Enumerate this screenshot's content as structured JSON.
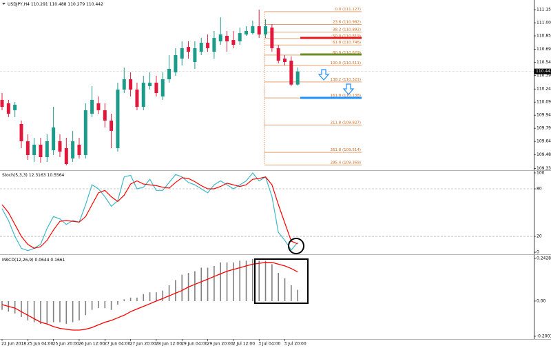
{
  "chart_data": [
    {
      "type": "candlestick",
      "title": "USDJPY,H4",
      "categories": [
        "22 Jun 2018",
        null,
        null,
        null,
        "25 Jun 04:00",
        null,
        null,
        null,
        "25 Jun 20:00",
        null,
        null,
        null,
        "26 Jun 12:00",
        null,
        null,
        null,
        "27 Jun 04:00",
        null,
        null,
        null,
        "27 Jun 20:00",
        null,
        null,
        null,
        "28 Jun 12:00",
        null,
        null,
        null,
        "29 Jun 04:00",
        null,
        null,
        null,
        "29 Jun 20:00",
        null,
        null,
        null,
        "2 Jul 12:00",
        null,
        null,
        null,
        "3 Jul 04:00",
        null,
        null,
        null,
        "3 Jul 20:00",
        null,
        null
      ],
      "open": [
        110.115,
        110.076,
        109.997,
        109.839,
        109.641,
        109.483,
        109.602,
        109.459,
        109.538,
        109.641,
        109.562,
        109.444,
        109.602,
        109.483,
        109.957,
        110.076,
        109.997,
        109.878,
        109.562,
        110.234,
        110.352,
        110.234,
        110.036,
        110.273,
        110.313,
        110.155,
        110.352,
        110.431,
        110.589,
        110.723,
        110.55,
        110.668,
        110.771,
        110.668,
        110.787,
        110.85,
        110.802,
        110.787,
        110.866,
        110.881,
        110.96,
        110.866,
        110.945,
        110.708,
        110.589,
        110.565,
        110.291
      ],
      "high": [
        110.194,
        110.115,
        110.091,
        109.878,
        109.72,
        109.681,
        109.681,
        109.72,
        110.036,
        109.72,
        109.681,
        109.76,
        109.681,
        110.076,
        110.273,
        110.155,
        110.076,
        109.957,
        110.313,
        110.486,
        110.431,
        110.313,
        110.392,
        110.431,
        110.392,
        110.431,
        110.629,
        110.708,
        110.787,
        110.787,
        110.787,
        110.826,
        110.866,
        110.905,
        111.063,
        110.905,
        110.905,
        110.945,
        110.96,
        111.024,
        111.15,
        111.039,
        110.984,
        110.747,
        110.629,
        110.613,
        110.488
      ],
      "low": [
        109.997,
        109.918,
        109.918,
        109.562,
        109.428,
        109.404,
        109.396,
        109.404,
        109.483,
        109.459,
        109.365,
        109.404,
        109.444,
        109.444,
        109.918,
        109.957,
        109.799,
        109.562,
        109.523,
        110.194,
        110.155,
        109.997,
        109.997,
        110.234,
        110.155,
        110.115,
        110.313,
        110.392,
        110.51,
        110.589,
        110.471,
        110.629,
        110.668,
        110.589,
        110.747,
        110.668,
        110.708,
        110.747,
        110.85,
        110.866,
        110.826,
        110.826,
        110.668,
        110.534,
        110.51,
        110.273,
        110.279
      ],
      "close": [
        110.036,
        109.957,
        110.06,
        109.641,
        109.483,
        109.602,
        109.459,
        109.641,
        109.799,
        109.523,
        109.38,
        109.641,
        109.483,
        109.997,
        110.115,
        109.997,
        109.878,
        109.76,
        110.234,
        110.352,
        110.234,
        110.036,
        110.313,
        110.313,
        110.194,
        110.352,
        110.471,
        110.629,
        110.708,
        110.668,
        110.708,
        110.771,
        110.708,
        110.826,
        110.866,
        110.787,
        110.747,
        110.881,
        110.905,
        110.96,
        110.866,
        110.96,
        110.708,
        110.565,
        110.55,
        110.291,
        110.442
      ],
      "up_color": "#1b9b8a",
      "down_color": "#e0193c",
      "ylim": [
        109.309,
        111.261
      ],
      "yticks": [
        {
          "value": 111.15,
          "label": "111.150"
        },
        {
          "value": 111.0,
          "label": "111.000"
        },
        {
          "value": 110.85,
          "label": "110.850"
        },
        {
          "value": 110.695,
          "label": "110.695"
        },
        {
          "value": 110.545,
          "label": "110.545"
        },
        {
          "value": 110.395,
          "label": "110.395"
        },
        {
          "value": 110.24,
          "label": "110.240"
        },
        {
          "value": 110.09,
          "label": "110.090"
        },
        {
          "value": 109.94,
          "label": "109.940"
        },
        {
          "value": 109.79,
          "label": "109.790"
        },
        {
          "value": 109.64,
          "label": "109.640"
        },
        {
          "value": 109.485,
          "label": "109.485"
        },
        {
          "value": 109.33,
          "label": "109.330"
        }
      ],
      "fib_color": "#d2691e",
      "fib_levels": [
        {
          "value": 111.127,
          "label": "0.0 (111.127)"
        },
        {
          "value": 110.982,
          "label": "23.6 (110.982)"
        },
        {
          "value": 110.892,
          "label": "38.2 (110.892)"
        },
        {
          "value": 110.819,
          "label": "50.0 (110.819)"
        },
        {
          "value": 110.746,
          "label": "61.8 (110.746)"
        },
        {
          "value": 110.629,
          "label": "80.9 (110.629)"
        },
        {
          "value": 110.511,
          "label": "100.0 (110.511)"
        },
        {
          "value": 110.321,
          "label": "138.2 (110.321)"
        },
        {
          "value": 110.138,
          "label": "161.8 (110.138)"
        },
        {
          "value": 109.827,
          "label": "211.8 (109.827)"
        },
        {
          "value": 109.514,
          "label": "261.8 (109.514)"
        },
        {
          "value": 109.369,
          "label": "285.4 (109.369)"
        }
      ],
      "lines": [
        {
          "value": 110.826,
          "color": "#e0191c"
        },
        {
          "value": 110.637,
          "color": "#6b8e23"
        },
        {
          "value": 110.139,
          "color": "#1e90ff"
        }
      ]
    },
    {
      "type": "line",
      "title": "Stoch(5,3,3)",
      "series": [
        {
          "color": "#3fb8c8",
          "values": [
            55,
            40,
            20,
            5,
            2,
            5,
            10,
            30,
            45,
            42,
            35,
            40,
            38,
            60,
            85,
            80,
            70,
            58,
            65,
            95,
            97,
            80,
            82,
            92,
            78,
            78,
            88,
            98,
            95,
            88,
            85,
            80,
            75,
            85,
            90,
            85,
            80,
            85,
            90,
            100,
            90,
            95,
            70,
            25,
            15,
            3,
            12.3163
          ]
        },
        {
          "color": "#ff0000",
          "values": [
            60,
            50,
            35,
            20,
            10,
            5,
            7,
            15,
            28,
            39,
            40,
            39,
            38,
            45,
            60,
            75,
            78,
            70,
            64,
            72,
            86,
            90,
            86,
            85,
            84,
            82,
            81,
            88,
            94,
            93,
            89,
            84,
            80,
            80,
            83,
            87,
            85,
            83,
            85,
            92,
            93,
            95,
            85,
            60,
            37,
            14,
            10.5564
          ]
        }
      ],
      "ylim": [
        -1.7,
        102.6
      ],
      "yticks": [
        100,
        80,
        20,
        0
      ],
      "levels": [
        80,
        20
      ]
    },
    {
      "type": "macd",
      "title": "MACD(12,26,9)",
      "series": [
        {
          "style": "histogram",
          "color": "#7f7f7f",
          "values": [
            -0.05,
            -0.06,
            -0.07,
            -0.09,
            -0.11,
            -0.12,
            -0.13,
            -0.13,
            -0.12,
            -0.12,
            -0.13,
            -0.12,
            -0.11,
            -0.08,
            -0.05,
            -0.04,
            -0.04,
            -0.05,
            -0.02,
            0.01,
            0.02,
            0.02,
            0.04,
            0.05,
            0.05,
            0.06,
            0.09,
            0.12,
            0.15,
            0.16,
            0.17,
            0.19,
            0.19,
            0.2,
            0.22,
            0.22,
            0.22,
            0.23,
            0.23,
            0.24,
            0.23,
            0.23,
            0.21,
            0.16,
            0.13,
            0.09,
            0.0644
          ]
        },
        {
          "style": "line",
          "color": "#ff0000",
          "values": [
            -0.02,
            -0.03,
            -0.04,
            -0.06,
            -0.08,
            -0.1,
            -0.12,
            -0.13,
            -0.145,
            -0.155,
            -0.16,
            -0.165,
            -0.165,
            -0.16,
            -0.15,
            -0.135,
            -0.12,
            -0.11,
            -0.095,
            -0.08,
            -0.06,
            -0.045,
            -0.03,
            -0.015,
            0.0,
            0.015,
            0.03,
            0.045,
            0.06,
            0.08,
            0.095,
            0.11,
            0.125,
            0.14,
            0.155,
            0.17,
            0.18,
            0.19,
            0.2,
            0.21,
            0.215,
            0.22,
            0.22,
            0.21,
            0.2,
            0.185,
            0.1661
          ]
        }
      ],
      "ylim": [
        -0.2158,
        0.2624
      ],
      "yticks": [
        0.2428,
        {
          "value": 0,
          "label": "0.00"
        },
        -0.2001
      ]
    }
  ]
}
